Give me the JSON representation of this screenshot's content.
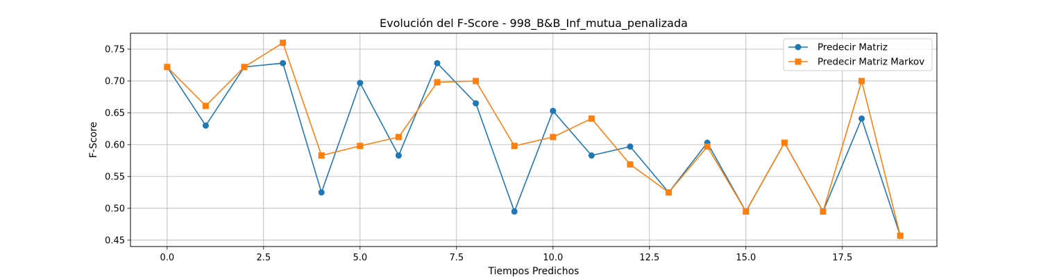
{
  "chart_data": {
    "type": "line",
    "title": "Evolución del F-Score - 998_B&B_Inf_mutua_penalizada",
    "xlabel": "Tiempos Predichos",
    "ylabel": "F-Score",
    "x": [
      0,
      1,
      2,
      3,
      4,
      5,
      6,
      7,
      8,
      9,
      10,
      11,
      12,
      13,
      14,
      15,
      16,
      17,
      18,
      19
    ],
    "xlim": [
      -0.95,
      19.95
    ],
    "ylim": [
      0.44,
      0.775
    ],
    "xticks": [
      0.0,
      2.5,
      5.0,
      7.5,
      10.0,
      12.5,
      15.0,
      17.5
    ],
    "xtick_labels": [
      "0.0",
      "2.5",
      "5.0",
      "7.5",
      "10.0",
      "12.5",
      "15.0",
      "17.5"
    ],
    "yticks": [
      0.45,
      0.5,
      0.55,
      0.6,
      0.65,
      0.7,
      0.75
    ],
    "ytick_labels": [
      "0.45",
      "0.50",
      "0.55",
      "0.60",
      "0.65",
      "0.70",
      "0.75"
    ],
    "grid": true,
    "legend_position": "top-right",
    "series": [
      {
        "name": "Predecir Matriz",
        "marker": "circle",
        "color": "#1f77b4",
        "values": [
          0.722,
          0.63,
          0.722,
          0.728,
          0.525,
          0.697,
          0.583,
          0.728,
          0.665,
          0.495,
          0.653,
          0.583,
          0.597,
          0.525,
          0.603,
          0.495,
          0.603,
          0.495,
          0.641,
          0.457
        ]
      },
      {
        "name": "Predecir Matriz Markov",
        "marker": "square",
        "color": "#ff7f0e",
        "values": [
          0.722,
          0.661,
          0.722,
          0.76,
          0.583,
          0.598,
          0.612,
          0.698,
          0.7,
          0.598,
          0.612,
          0.641,
          0.569,
          0.525,
          0.597,
          0.495,
          0.603,
          0.495,
          0.7,
          0.457
        ]
      }
    ]
  }
}
